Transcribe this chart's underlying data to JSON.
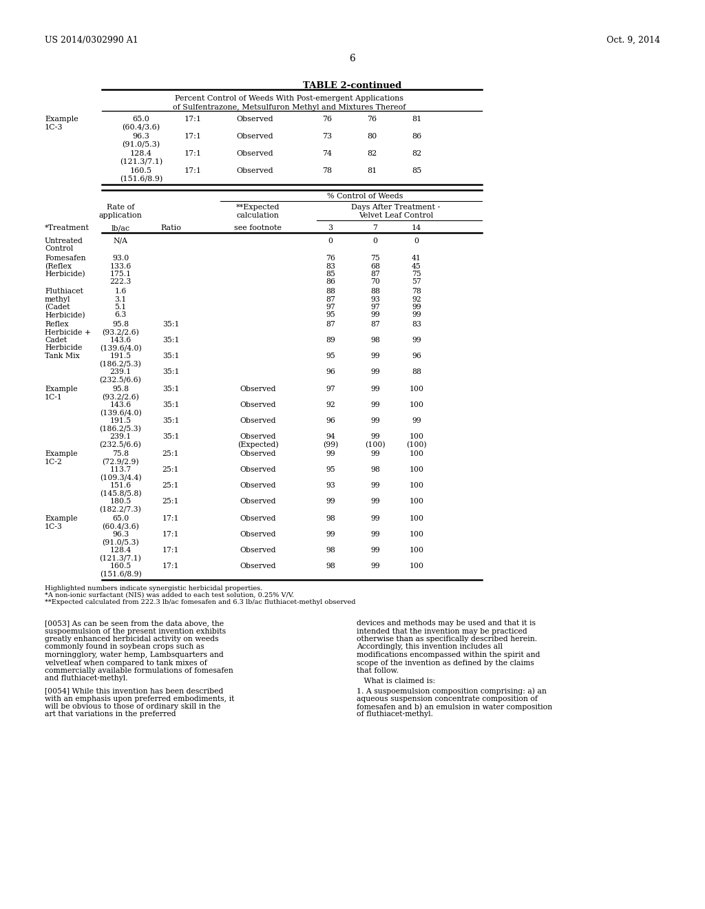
{
  "header_left": "US 2014/0302990 A1",
  "header_right": "Oct. 9, 2014",
  "page_number": "6",
  "table_title": "TABLE 2-continued",
  "table_subtitle1": "Percent Control of Weeds With Post-emergent Applications",
  "table_subtitle2": "of Sulfentrazone, Metsulfuron Methyl and Mixtures Thereof",
  "footnotes": [
    "Highlighted numbers indicate synergistic herbicidal properties.",
    "*A non-ionic surfactant (NIS) was added to each test solution, 0.25% V/V.",
    "**Expected calculated from 222.3 lb/ac fomesafen and 6.3 lb/ac fluthiacet-methyl observed"
  ],
  "para_0053": "[0053]  As can be seen from the data above, the suspoemulsion of the present invention exhibits greatly enhanced herbicidal activity on weeds commonly found in soybean crops such as morningglory, water hemp, Lambsquarters and velvetleaf when compared to tank mixes of commercially available formulations of fomesafen and fluthiacet-methyl.",
  "para_0054": "[0054]  While this invention has been described with an emphasis upon preferred embodiments, it will be obvious to those of ordinary skill in the art that variations in the preferred",
  "para_right1": "devices and methods may be used and that it is intended that the invention may be practiced otherwise than as specifically described herein. Accordingly, this invention includes all modifications encompassed within the spirit and scope of the invention as defined by the claims that follow.",
  "para_right2": "   What is claimed is:",
  "para_right3": "   1. A suspoemulsion composition comprising: a) an aqueous suspension concentrate composition of fomesafen and b) an emulsion in water composition of fluthiacet-methyl."
}
